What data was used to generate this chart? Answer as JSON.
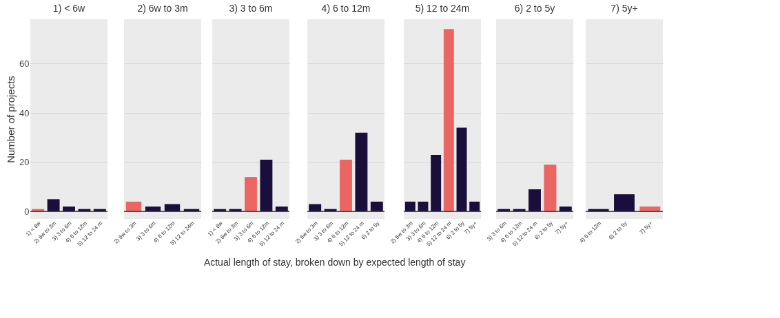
{
  "chart_data": [
    {
      "type": "bar",
      "title": "1) < 6w",
      "ylabel": "Number of projects",
      "categories": [
        "1) < 6w",
        "2) 6w to 3m",
        "3) 3 to 6m",
        "4) 6 to 12m",
        "5) 12 to 24 m"
      ],
      "values": [
        1,
        5,
        2,
        1,
        1
      ],
      "colors": [
        "#eb6662",
        "#1a0f3c",
        "#1a0f3c",
        "#1a0f3c",
        "#1a0f3c"
      ],
      "ylim": [
        -3,
        78
      ],
      "yticks": [
        0,
        20,
        40,
        60
      ],
      "grid": "y",
      "ref_lines": [
        {
          "axis": "y",
          "value": 0,
          "color": "#444444"
        }
      ]
    },
    {
      "type": "bar",
      "title": "2) 6w to 3m",
      "categories": [
        "2) 6w to 3m",
        "3) 3 to 6m",
        "4) 6 to 12m",
        "5) 12 to 24m"
      ],
      "values": [
        4,
        2,
        3,
        1
      ],
      "colors": [
        "#eb6662",
        "#1a0f3c",
        "#1a0f3c",
        "#1a0f3c"
      ],
      "ylim": [
        -3,
        78
      ],
      "yticks": [
        0,
        20,
        40,
        60
      ],
      "grid": "y",
      "tick_labels": "x",
      "ref_lines": [
        {
          "axis": "y",
          "value": 0,
          "color": "#444444"
        }
      ]
    },
    {
      "type": "bar",
      "title": "3) 3 to 6m",
      "categories": [
        "1) < 6w",
        "2) 6w to 3m",
        "3) 3 to 6m",
        "4) 6 to 12m",
        "5) 12 to 24 m"
      ],
      "values": [
        1,
        1,
        14,
        21,
        2
      ],
      "colors": [
        "#1a0f3c",
        "#1a0f3c",
        "#eb6662",
        "#1a0f3c",
        "#1a0f3c"
      ],
      "ylim": [
        -3,
        78
      ],
      "yticks": [
        0,
        20,
        40,
        60
      ],
      "grid": "y",
      "tick_labels": "x",
      "ref_lines": [
        {
          "axis": "y",
          "value": 0,
          "color": "#444444"
        }
      ]
    },
    {
      "type": "bar",
      "title": "4) 6 to 12m",
      "xlabel": "Actual length of stay, broken down by expected length of stay",
      "categories": [
        "2) 6w to 3m",
        "3) 3 to 6m",
        "4) 6 to 12m",
        "5) 12 to 24 m",
        "6) 2 to 5y"
      ],
      "values": [
        3,
        1,
        21,
        32,
        4
      ],
      "colors": [
        "#1a0f3c",
        "#1a0f3c",
        "#eb6662",
        "#1a0f3c",
        "#1a0f3c"
      ],
      "ylim": [
        -3,
        78
      ],
      "yticks": [
        0,
        20,
        40,
        60
      ],
      "grid": "y",
      "tick_labels": "x",
      "ref_lines": [
        {
          "axis": "y",
          "value": 0,
          "color": "#444444"
        }
      ]
    },
    {
      "type": "bar",
      "title": "5) 12 to 24m",
      "categories": [
        "2) 6w to 3m",
        "3) 3 to 6m",
        "4) 6 to 12m",
        "5) 12 to 24 m",
        "6) 2 to 5y",
        "7) 5y+"
      ],
      "values": [
        4,
        4,
        23,
        74,
        34,
        4
      ],
      "colors": [
        "#1a0f3c",
        "#1a0f3c",
        "#1a0f3c",
        "#eb6662",
        "#1a0f3c",
        "#1a0f3c"
      ],
      "ylim": [
        -3,
        78
      ],
      "yticks": [
        0,
        20,
        40,
        60
      ],
      "grid": "y",
      "tick_labels": "x",
      "ref_lines": [
        {
          "axis": "y",
          "value": 0,
          "color": "#444444"
        }
      ]
    },
    {
      "type": "bar",
      "title": "6) 2 to 5y",
      "categories": [
        "3) 3 to 6m",
        "4) 6 to 12m",
        "5) 12 to 24 m",
        "6) 2 to 5y",
        "7) 5y+"
      ],
      "values": [
        1,
        1,
        9,
        19,
        2
      ],
      "colors": [
        "#1a0f3c",
        "#1a0f3c",
        "#1a0f3c",
        "#eb6662",
        "#1a0f3c"
      ],
      "ylim": [
        -3,
        78
      ],
      "yticks": [
        0,
        20,
        40,
        60
      ],
      "grid": "y",
      "tick_labels": "x",
      "ref_lines": [
        {
          "axis": "y",
          "value": 0,
          "color": "#444444"
        }
      ]
    },
    {
      "type": "bar",
      "title": "7) 5y+",
      "categories": [
        "4) 6 to 12m",
        "6) 2 to 5y",
        "7) 5y+"
      ],
      "values": [
        1,
        7,
        2
      ],
      "colors": [
        "#1a0f3c",
        "#1a0f3c",
        "#eb6662"
      ],
      "ylim": [
        -3,
        78
      ],
      "yticks": [
        0,
        20,
        40,
        60
      ],
      "grid": "y",
      "tick_labels": "x",
      "ref_lines": [
        {
          "axis": "y",
          "value": 0,
          "color": "#444444"
        }
      ]
    }
  ]
}
